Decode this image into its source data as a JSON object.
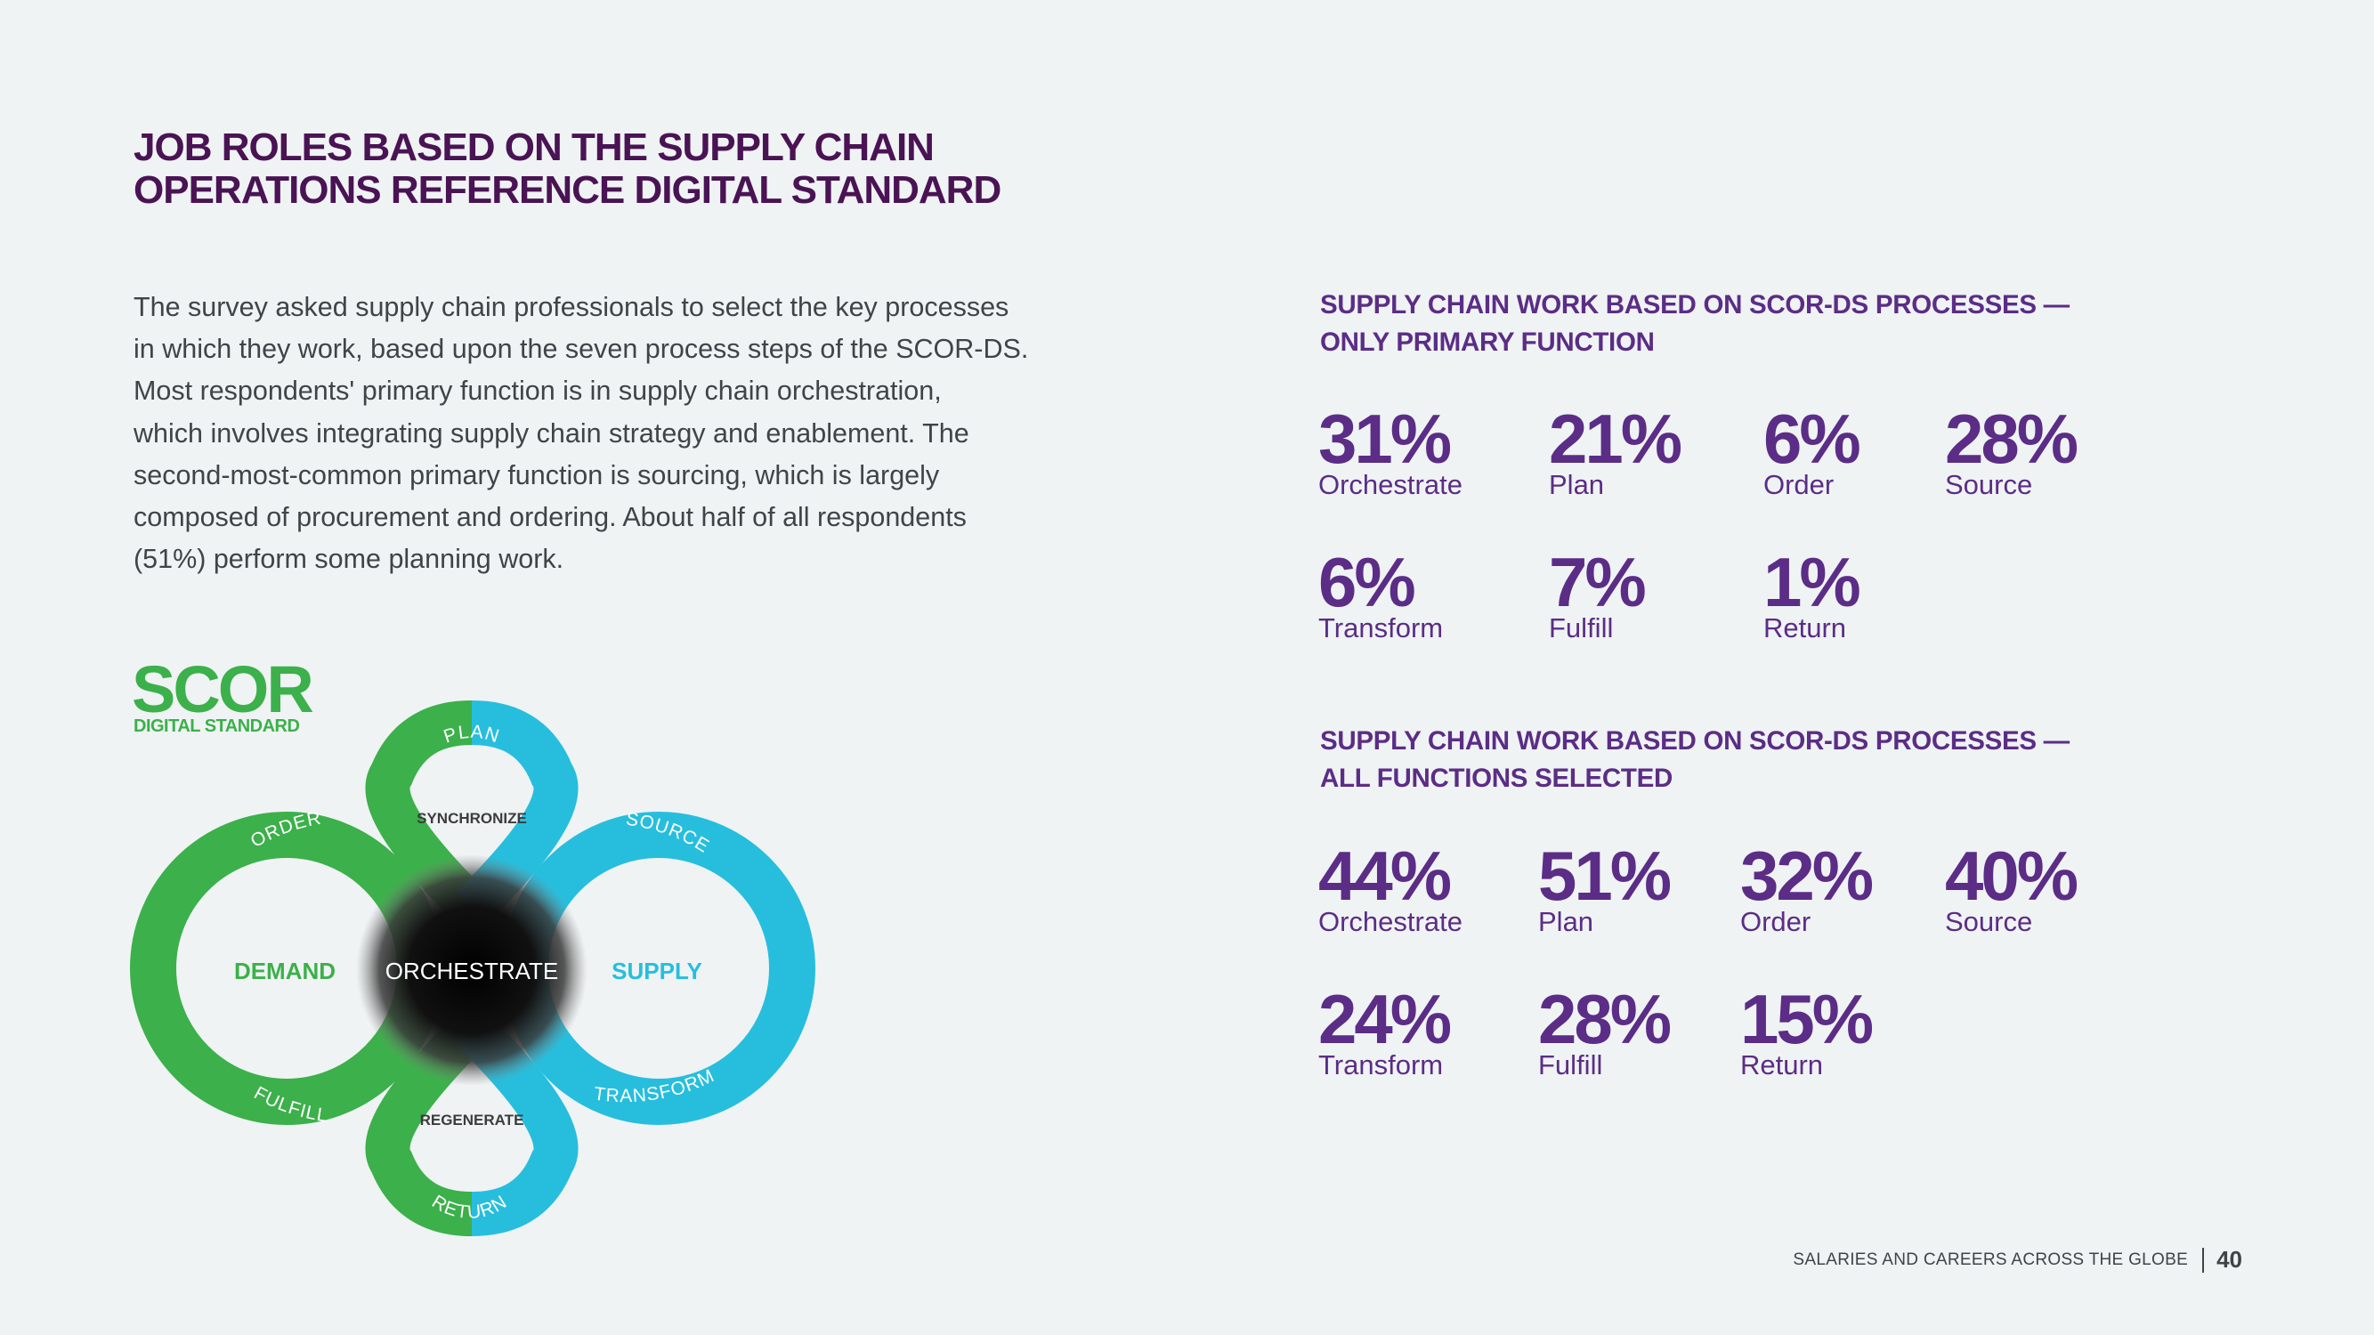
{
  "title": {
    "line1": "JOB ROLES BASED ON THE SUPPLY CHAIN",
    "line2": "OPERATIONS REFERENCE DIGITAL STANDARD"
  },
  "body_lines": [
    "The survey asked supply chain professionals to select the key processes",
    "in which they work, based upon the seven process steps of the SCOR-DS.",
    "Most respondents' primary function is in supply chain orchestration,",
    "which involves integrating supply chain strategy and enablement. The",
    "second-most-common primary function is sourcing, which is largely",
    "composed of procurement and ordering. About half of all respondents",
    "(51%) perform some planning work."
  ],
  "diagram": {
    "logo_main": "SCOR",
    "logo_sub": "DIGITAL STANDARD",
    "center": "ORCHESTRATE",
    "demand": "DEMAND",
    "supply": "SUPPLY",
    "top_inner": "SYNCHRONIZE",
    "bottom_inner": "REGENERATE",
    "plan": "PLAN",
    "order": "ORDER",
    "source": "SOURCE",
    "fulfill": "FULFILL",
    "transform": "TRANSFORM",
    "return": "RETURN",
    "colors": {
      "green": "#3cb04a",
      "blue": "#27bedd"
    }
  },
  "section1": {
    "heading_line1": "SUPPLY CHAIN WORK BASED ON SCOR-DS PROCESSES —",
    "heading_line2": "ONLY PRIMARY FUNCTION",
    "stats": [
      {
        "pct": "31%",
        "label": "Orchestrate"
      },
      {
        "pct": "21%",
        "label": "Plan"
      },
      {
        "pct": "6%",
        "label": "Order"
      },
      {
        "pct": "28%",
        "label": "Source"
      },
      {
        "pct": "6%",
        "label": "Transform"
      },
      {
        "pct": "7%",
        "label": "Fulfill"
      },
      {
        "pct": "1%",
        "label": "Return"
      }
    ]
  },
  "section2": {
    "heading_line1": "SUPPLY CHAIN WORK BASED ON SCOR-DS PROCESSES —",
    "heading_line2": "ALL FUNCTIONS SELECTED",
    "stats": [
      {
        "pct": "44%",
        "label": "Orchestrate"
      },
      {
        "pct": "51%",
        "label": "Plan"
      },
      {
        "pct": "32%",
        "label": "Order"
      },
      {
        "pct": "40%",
        "label": "Source"
      },
      {
        "pct": "24%",
        "label": "Transform"
      },
      {
        "pct": "28%",
        "label": "Fulfill"
      },
      {
        "pct": "15%",
        "label": "Return"
      }
    ]
  },
  "footer": {
    "text": "SALARIES AND CAREERS ACROSS THE GLOBE",
    "page": "40"
  }
}
